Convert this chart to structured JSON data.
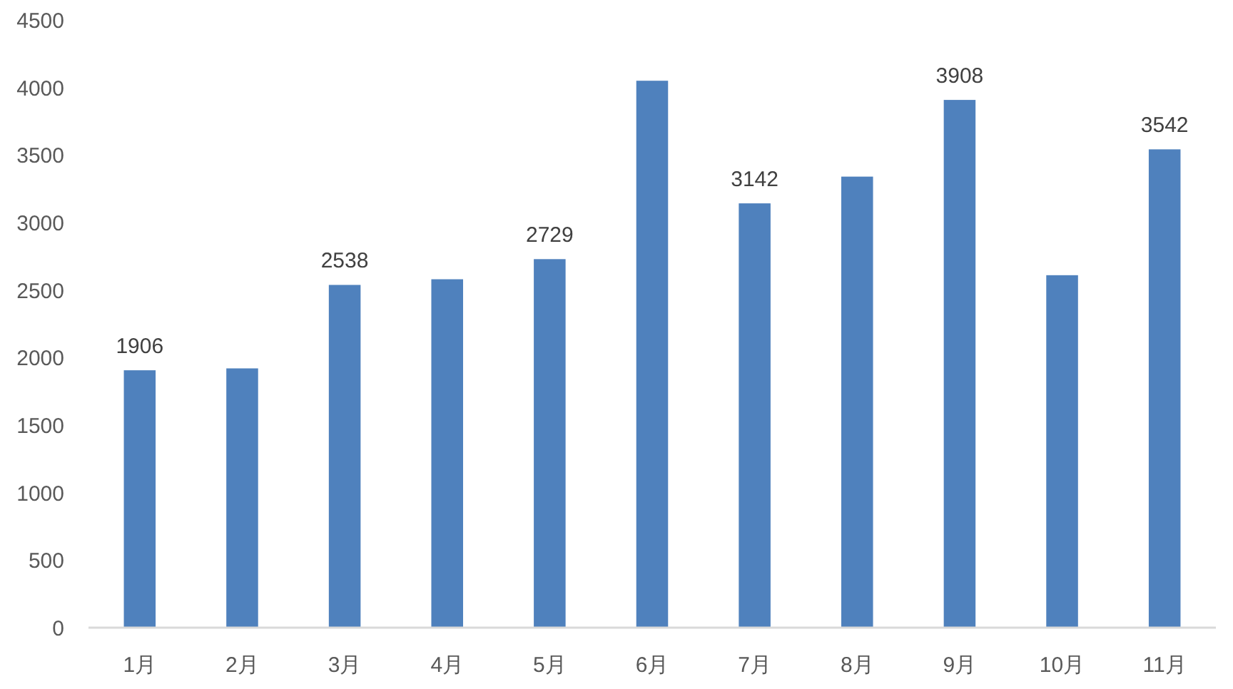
{
  "chart_data": {
    "type": "bar",
    "categories": [
      "1月",
      "2月",
      "3月",
      "4月",
      "5月",
      "6月",
      "7月",
      "8月",
      "9月",
      "10月",
      "11月"
    ],
    "values": [
      1906,
      1920,
      2538,
      2580,
      2729,
      4050,
      3142,
      3340,
      3908,
      2610,
      3542
    ],
    "value_labels": [
      "1906",
      null,
      "2538",
      null,
      "2729",
      null,
      "3142",
      null,
      "3908",
      null,
      "3542"
    ],
    "color": "#4f81bd",
    "ylim": [
      0,
      4500
    ],
    "yticks": [
      0,
      500,
      1000,
      1500,
      2000,
      2500,
      3000,
      3500,
      4000,
      4500
    ]
  }
}
